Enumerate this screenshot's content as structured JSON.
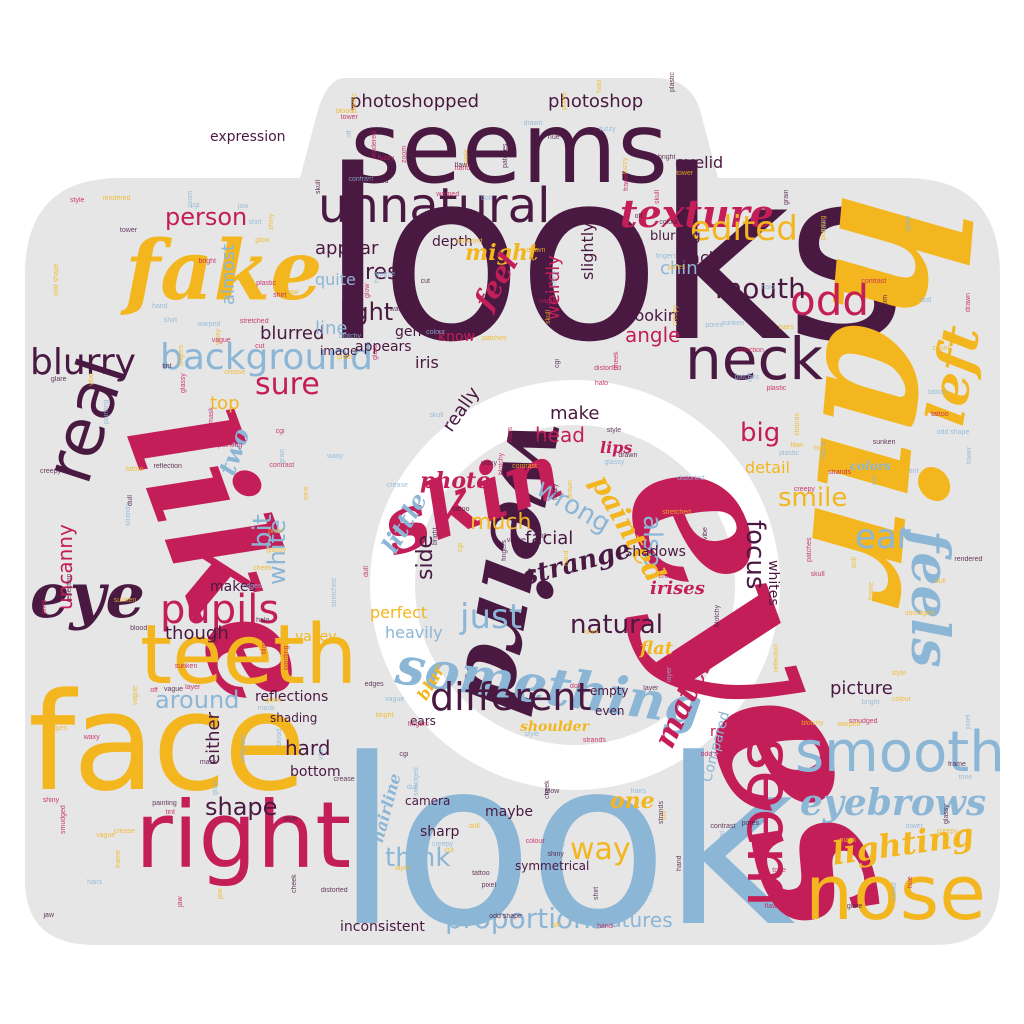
{
  "palette": {
    "background": "#ffffff",
    "shape_fill": "#e6e6e6",
    "plum": "#4a1942",
    "crimson": "#c41e58",
    "gold": "#f3b61f",
    "steel_blue": "#8cb6d6"
  },
  "words": {
    "looks": "looks",
    "look": "look",
    "eyes": "eyes",
    "hair": "hair",
    "like": "like",
    "face": "face",
    "seems": "seems",
    "fake": "fake",
    "weird": "weird",
    "skin": "skin",
    "right": "right",
    "teeth": "teeth",
    "nose": "nose",
    "smooth": "smooth",
    "seem": "seem",
    "neck": "neck",
    "something": "something",
    "real": "real",
    "background": "background",
    "unnatural": "unnatural",
    "eye": "eye",
    "feels": "feels",
    "left": "left",
    "different": "different",
    "blurry": "blurry",
    "pupils": "pupils",
    "texture": "texture",
    "eyebrows": "eyebrows",
    "lighting": "lighting",
    "odd": "odd",
    "edited": "edited",
    "proportions": "proportions",
    "mouth": "mouth",
    "photoshopped": "photoshopped",
    "photoshop": "photoshop",
    "person": "person",
    "light": "light",
    "sure": "sure",
    "just": "just",
    "natural": "natural",
    "wrong": "wrong",
    "strange": "strange",
    "also": "also",
    "painted": "painted",
    "think": "think",
    "way": "way",
    "shape": "shape",
    "match": "match",
    "ear": "ear",
    "smile": "smile",
    "focus": "focus",
    "head": "head",
    "really": "really",
    "little": "little",
    "photo": "photo",
    "much": "much",
    "side": "side",
    "around": "around",
    "features": "features",
    "picture": "picture",
    "inconsistent": "inconsistent",
    "hard": "hard",
    "either": "either",
    "uncanny": "uncanny",
    "white": "white",
    "bit": "bit",
    "though": "though",
    "makes": "makes",
    "almost": "almost",
    "quite": "quite",
    "appear": "appear",
    "rest": "rest",
    "might": "might",
    "feel": "feel",
    "depth": "depth",
    "angle": "angle",
    "chin": "chin",
    "looking": "looking",
    "big": "big",
    "detail": "detail",
    "top": "top",
    "blurred": "blurred",
    "expression": "expression",
    "generated": "generated",
    "appears": "appears",
    "line": "line",
    "iris": "iris",
    "image": "image",
    "know": "know",
    "weirdly": "weirdly",
    "slightly": "slightly",
    "back": "back",
    "blurring": "blurring",
    "eyelid": "eyelid",
    "make": "make",
    "flat": "flat",
    "lips": "lips",
    "irises": "irises",
    "shadows": "shadows",
    "facial": "facial",
    "perfect": "perfect",
    "heavily": "heavily",
    "blur": "blur",
    "ears": "ears",
    "shoulder": "shoulder",
    "empty": "empty",
    "even": "even",
    "robotic": "robotic",
    "one": "one",
    "hairline": "hairline",
    "maybe": "maybe",
    "sharp": "sharp",
    "camera": "camera",
    "bottom": "bottom",
    "reflections": "reflections",
    "shading": "shading",
    "two": "two",
    "valley": "valley",
    "whites": "whites",
    "colors": "colors",
    "compared": "Compared",
    "symmetrical": "symmetrical",
    "tiny": [
      "fingers",
      "contrast",
      "crease",
      "colour",
      "bright",
      "blood",
      "drawn",
      "hairs",
      "reflection",
      "painting",
      "creepy",
      "tower",
      "cgi",
      "plastic",
      "frame",
      "cut",
      "style",
      "skull",
      "mask",
      "halo",
      "tattoo",
      "strands",
      "jaw",
      "shirt",
      "glare",
      "smudged",
      "pores",
      "vague",
      "cheek",
      "hand",
      "dull",
      "doll",
      "zoom",
      "layer",
      "tint",
      "flaw",
      "glow",
      "vibe",
      "tone",
      "hue",
      "grain",
      "pixel",
      "edges",
      "patches",
      "blotchy",
      "fuzzy",
      "waxy",
      "glassy",
      "shiny",
      "warped",
      "stretched",
      "distorted",
      "sunken",
      "odd shape",
      "off",
      "vague",
      "rendered"
    ]
  }
}
